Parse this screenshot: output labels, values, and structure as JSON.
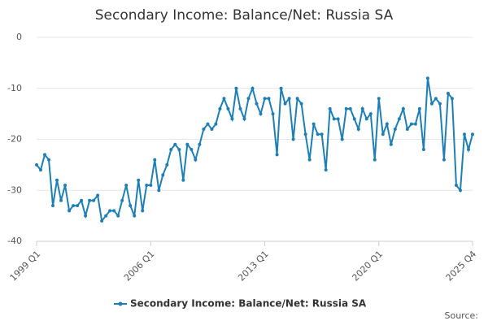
{
  "chart_data": {
    "type": "line",
    "title": "Secondary Income: Balance/Net: Russia SA",
    "categories": [
      "1999 Q1",
      null,
      null,
      null,
      null,
      null,
      null,
      null,
      null,
      null,
      null,
      null,
      null,
      null,
      null,
      null,
      null,
      null,
      null,
      null,
      null,
      null,
      null,
      null,
      null,
      null,
      null,
      null,
      "2006 Q1",
      null,
      null,
      null,
      null,
      null,
      null,
      null,
      null,
      null,
      null,
      null,
      null,
      null,
      null,
      null,
      null,
      null,
      null,
      null,
      null,
      null,
      null,
      null,
      null,
      null,
      null,
      null,
      "2013 Q1",
      null,
      null,
      null,
      null,
      null,
      null,
      null,
      null,
      null,
      null,
      null,
      null,
      null,
      null,
      null,
      null,
      null,
      null,
      null,
      null,
      null,
      null,
      null,
      null,
      null,
      null,
      null,
      "2020 Q1",
      null,
      null,
      null,
      null,
      null,
      null,
      null,
      null,
      null,
      null,
      null,
      null,
      null,
      null,
      null,
      null,
      null,
      null,
      null,
      null,
      null,
      null,
      "2025 Q4"
    ],
    "series": [
      {
        "name": "Secondary Income: Balance/Net: Russia SA",
        "color": "#1f7fb4",
        "values": [
          -25,
          -26,
          -23,
          -24,
          -33,
          -28,
          -32,
          -29,
          -34,
          -33,
          -33,
          -32,
          -35,
          -32,
          -32,
          -31,
          -36,
          -35,
          -34,
          -34,
          -35,
          -32,
          -29,
          -33,
          -35,
          -28,
          -34,
          -29,
          -29,
          -24,
          -30,
          -27,
          -25,
          -22,
          -21,
          -22,
          -28,
          -21,
          -22,
          -24,
          -21,
          -18,
          -17,
          -18,
          -17,
          -14,
          -12,
          -14,
          -16,
          -10,
          -14,
          -16,
          -12,
          -10,
          -13,
          -15,
          -12,
          -12,
          -15,
          -23,
          -10,
          -13,
          -12,
          -20,
          -12,
          -13,
          -19,
          -24,
          -17,
          -19,
          -19,
          -26,
          -14,
          -16,
          -16,
          -20,
          -14,
          -14,
          -16,
          -18,
          -14,
          -16,
          -15,
          -24,
          -12,
          -19,
          -17,
          -21,
          -18,
          -16,
          -14,
          -18,
          -17,
          -17,
          -14,
          -22,
          -8,
          -13,
          -12,
          -13,
          -24,
          -11,
          -12,
          -29,
          -30,
          -19,
          -22,
          -19
        ]
      }
    ],
    "ylim": [
      -40,
      0
    ],
    "yticks": [
      0,
      -10,
      -20,
      -30,
      -40
    ],
    "grid": true,
    "legend": "bottom",
    "source": "Source:"
  }
}
